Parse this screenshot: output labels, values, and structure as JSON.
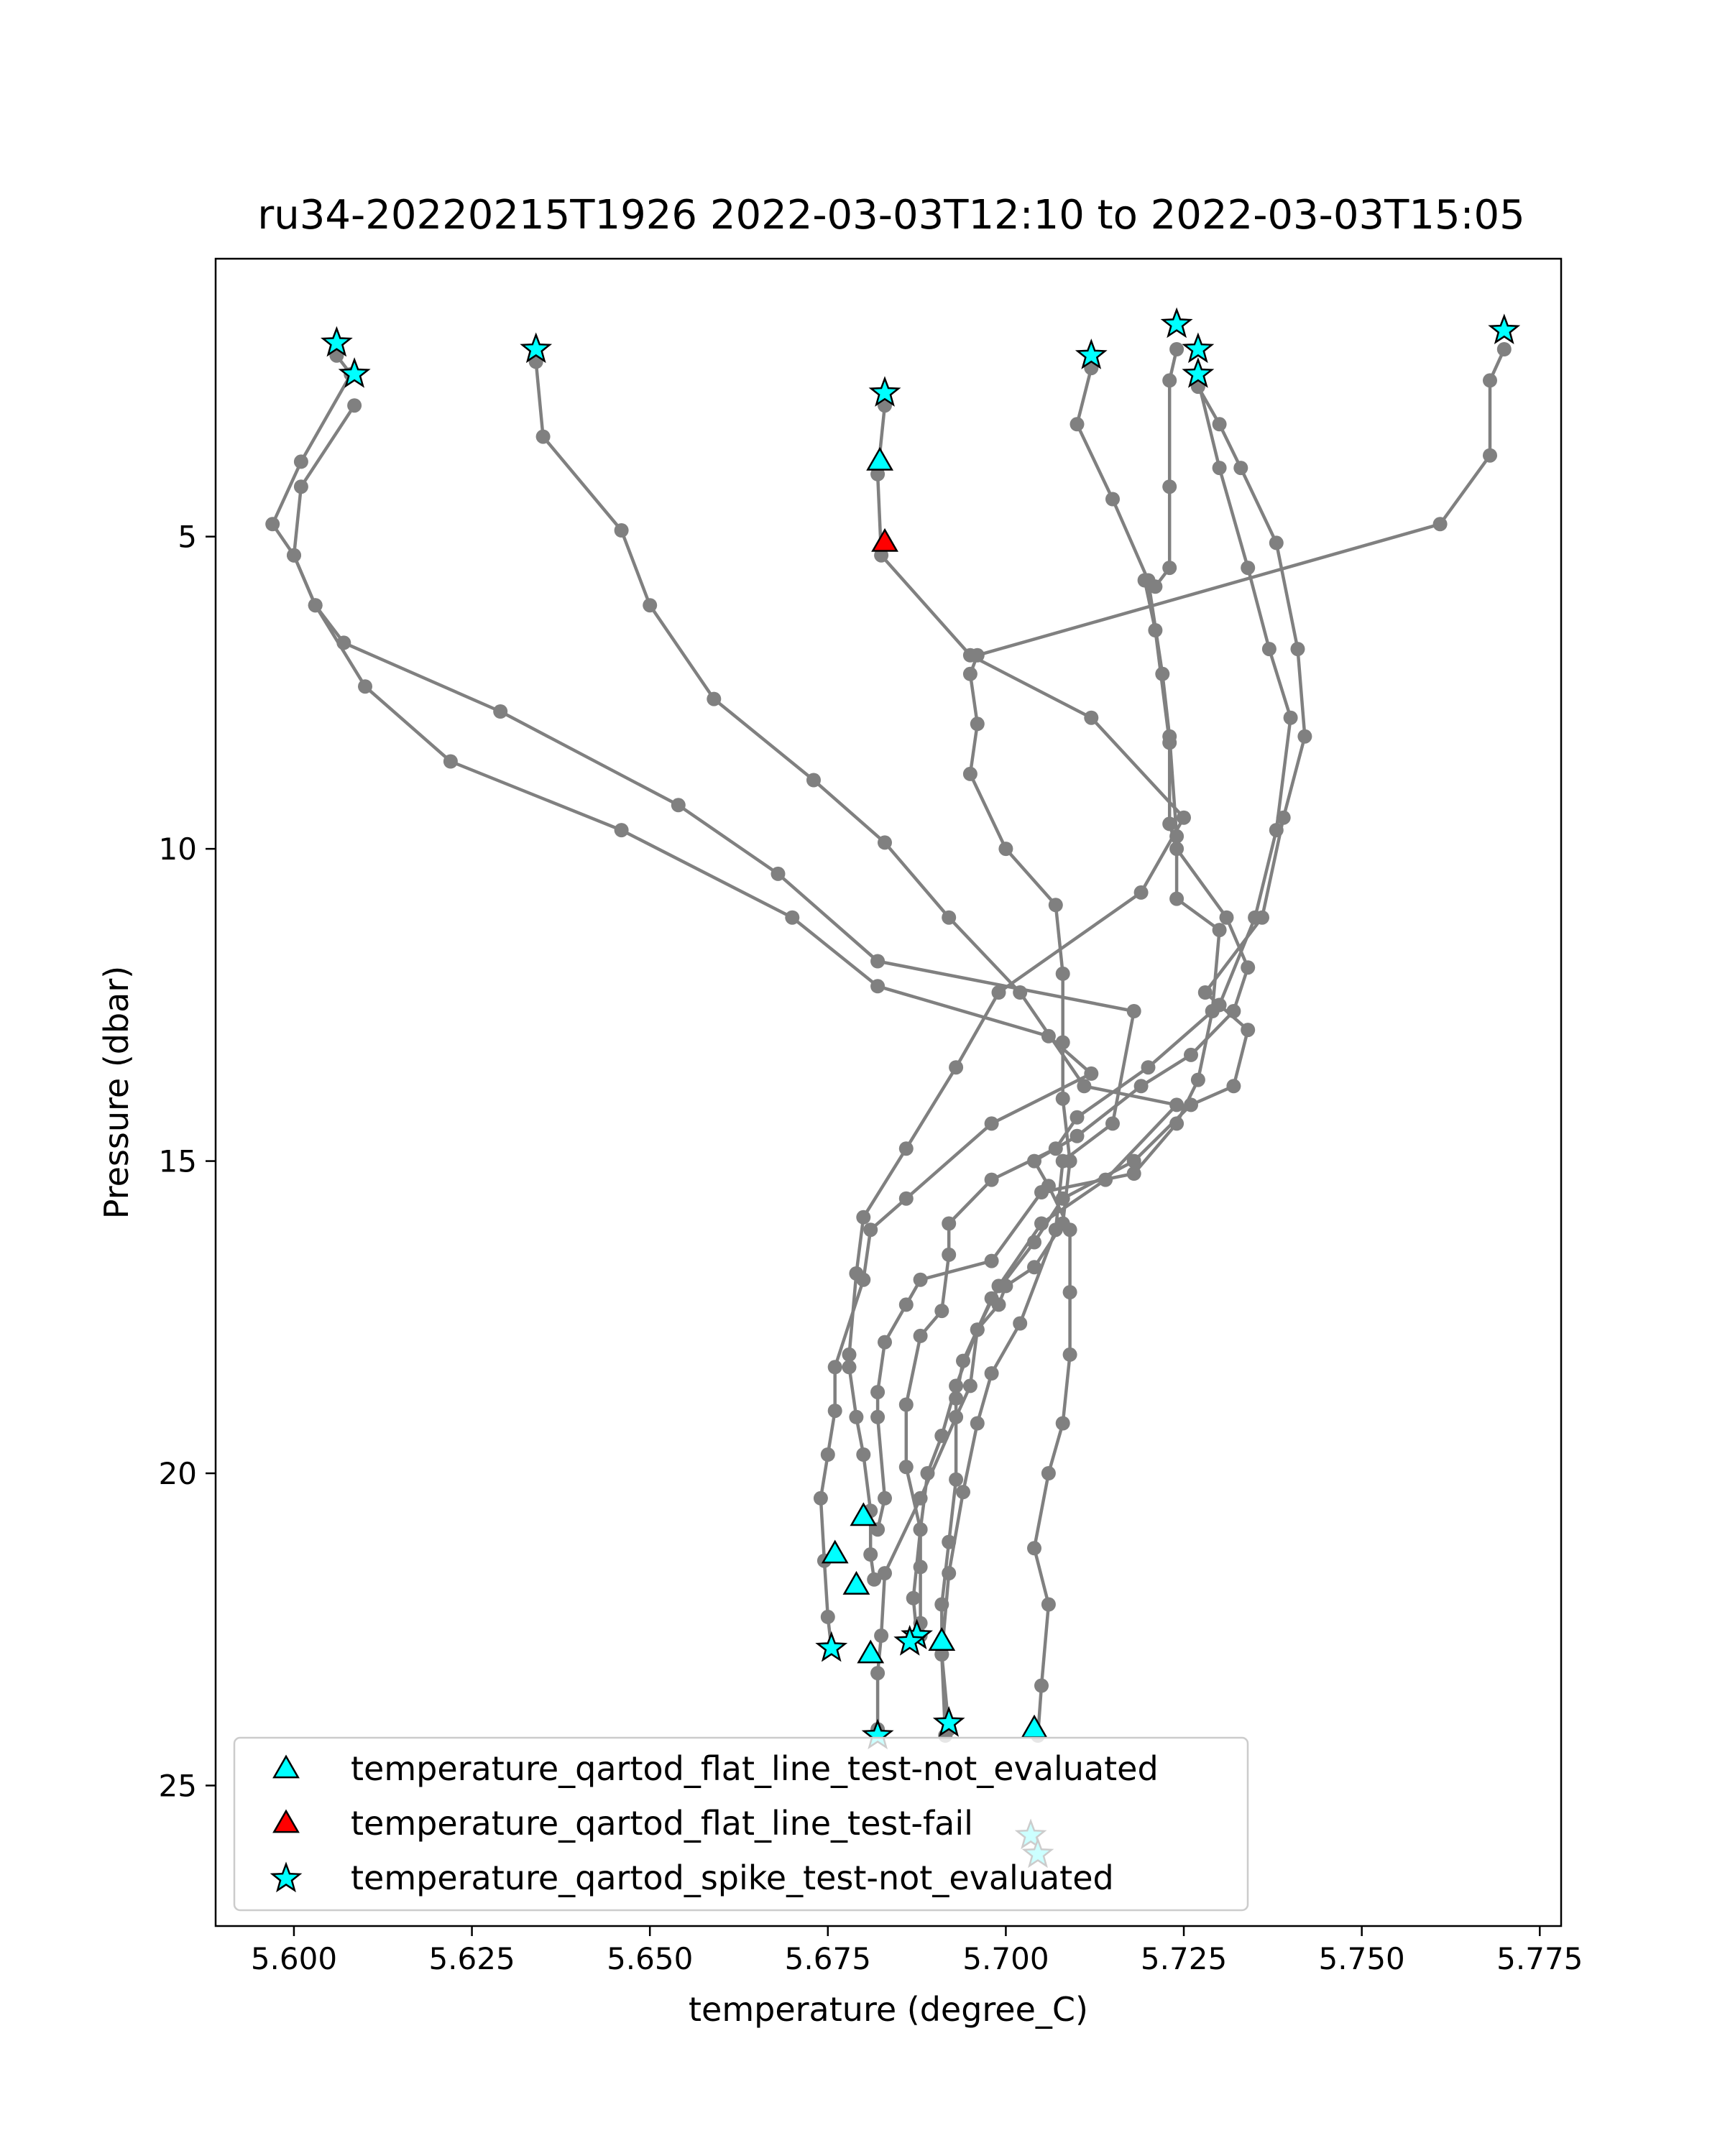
{
  "chart_data": {
    "type": "line",
    "title": "ru34-20220215T1926 2022-03-03T12:10 to 2022-03-03T15:05",
    "xlabel": "temperature (degree_C)",
    "ylabel": "Pressure (dbar)",
    "xlim": [
      5.589,
      5.778
    ],
    "ylim": [
      27.25,
      0.55
    ],
    "y_inverted": true,
    "xticks": [
      "5.600",
      "5.625",
      "5.650",
      "5.675",
      "5.700",
      "5.725",
      "5.750",
      "5.775"
    ],
    "yticks": [
      "5",
      "10",
      "15",
      "20",
      "25"
    ],
    "grid": false,
    "legend_position": "lower-left",
    "colors": {
      "line": "#808080",
      "not_evaluated": "#00ffff",
      "fail": "#ff0000",
      "edge": "#000000"
    },
    "legend": [
      {
        "label": "temperature_qartod_flat_line_test-not_evaluated",
        "marker": "triangle",
        "color": "#00ffff"
      },
      {
        "label": "temperature_qartod_flat_line_test-fail",
        "marker": "triangle",
        "color": "#ff0000"
      },
      {
        "label": "temperature_qartod_spike_test-not_evaluated",
        "marker": "star",
        "color": "#00ffff"
      }
    ],
    "series": [
      {
        "points": [
          [
            5.606,
            2.1
          ],
          [
            5.608,
            2.4
          ],
          [
            5.601,
            3.8
          ],
          [
            5.597,
            4.8
          ],
          [
            5.6,
            5.3
          ],
          [
            5.603,
            6.1
          ],
          [
            5.607,
            6.7
          ],
          [
            5.629,
            7.8
          ],
          [
            5.654,
            9.3
          ],
          [
            5.668,
            10.4
          ],
          [
            5.682,
            11.8
          ],
          [
            5.718,
            12.6
          ],
          [
            5.715,
            14.4
          ],
          [
            5.708,
            15.0
          ],
          [
            5.707,
            16.1
          ],
          [
            5.702,
            17.6
          ],
          [
            5.698,
            18.4
          ],
          [
            5.696,
            19.2
          ],
          [
            5.694,
            20.3
          ],
          [
            5.692,
            21.6
          ],
          [
            5.691,
            22.9
          ],
          [
            5.6915,
            24.2
          ]
        ]
      },
      {
        "points": [
          [
            5.6085,
            2.9
          ],
          [
            5.601,
            4.2
          ],
          [
            5.6,
            5.3
          ],
          [
            5.603,
            6.1
          ],
          [
            5.61,
            7.4
          ],
          [
            5.622,
            8.6
          ],
          [
            5.646,
            9.7
          ],
          [
            5.67,
            11.1
          ],
          [
            5.682,
            12.2
          ],
          [
            5.706,
            13.0
          ],
          [
            5.712,
            13.6
          ],
          [
            5.698,
            14.4
          ],
          [
            5.686,
            15.6
          ],
          [
            5.681,
            16.1
          ],
          [
            5.68,
            16.9
          ],
          [
            5.676,
            18.3
          ],
          [
            5.676,
            19.0
          ],
          [
            5.675,
            19.7
          ],
          [
            5.674,
            20.4
          ],
          [
            5.6745,
            21.4
          ],
          [
            5.675,
            22.3
          ],
          [
            5.6755,
            22.8
          ]
        ]
      },
      {
        "points": [
          [
            5.634,
            2.2
          ],
          [
            5.635,
            3.4
          ],
          [
            5.646,
            4.9
          ],
          [
            5.65,
            6.1
          ],
          [
            5.659,
            7.6
          ],
          [
            5.673,
            8.9
          ],
          [
            5.683,
            9.9
          ],
          [
            5.692,
            11.1
          ],
          [
            5.702,
            12.3
          ],
          [
            5.711,
            13.8
          ],
          [
            5.724,
            14.1
          ],
          [
            5.714,
            15.3
          ],
          [
            5.705,
            16.0
          ],
          [
            5.699,
            17.0
          ],
          [
            5.696,
            17.7
          ],
          [
            5.693,
            18.6
          ],
          [
            5.691,
            19.4
          ],
          [
            5.689,
            20.0
          ],
          [
            5.688,
            20.9
          ],
          [
            5.687,
            22.0
          ],
          [
            5.6875,
            22.6
          ]
        ]
      },
      {
        "points": [
          [
            5.683,
            2.9
          ],
          [
            5.682,
            4.0
          ],
          [
            5.6825,
            5.3
          ],
          [
            5.695,
            6.9
          ],
          [
            5.712,
            7.9
          ],
          [
            5.725,
            9.5
          ],
          [
            5.719,
            10.7
          ],
          [
            5.699,
            12.3
          ],
          [
            5.693,
            13.5
          ],
          [
            5.686,
            14.8
          ],
          [
            5.68,
            15.9
          ],
          [
            5.679,
            16.8
          ],
          [
            5.678,
            18.1
          ],
          [
            5.678,
            18.3
          ],
          [
            5.679,
            19.1
          ],
          [
            5.68,
            19.7
          ],
          [
            5.681,
            20.6
          ],
          [
            5.681,
            21.3
          ],
          [
            5.6815,
            21.7
          ]
        ]
      },
      {
        "points": [
          [
            5.712,
            2.3
          ],
          [
            5.71,
            3.2
          ],
          [
            5.715,
            4.4
          ],
          [
            5.72,
            5.7
          ],
          [
            5.722,
            7.2
          ],
          [
            5.723,
            8.2
          ],
          [
            5.724,
            9.8
          ],
          [
            5.724,
            10.8
          ],
          [
            5.73,
            11.3
          ],
          [
            5.729,
            12.6
          ],
          [
            5.727,
            13.7
          ],
          [
            5.724,
            14.4
          ],
          [
            5.718,
            15.2
          ],
          [
            5.705,
            15.5
          ],
          [
            5.698,
            16.6
          ],
          [
            5.688,
            16.9
          ],
          [
            5.686,
            17.3
          ],
          [
            5.683,
            17.9
          ],
          [
            5.682,
            18.7
          ],
          [
            5.682,
            19.1
          ],
          [
            5.683,
            20.4
          ],
          [
            5.682,
            20.9
          ]
        ]
      },
      {
        "points": [
          [
            5.724,
            2.0
          ],
          [
            5.723,
            2.5
          ],
          [
            5.723,
            4.2
          ],
          [
            5.723,
            5.5
          ],
          [
            5.721,
            5.8
          ],
          [
            5.7195,
            5.7
          ],
          [
            5.721,
            6.5
          ],
          [
            5.723,
            8.3
          ],
          [
            5.723,
            9.6
          ],
          [
            5.724,
            10.0
          ],
          [
            5.731,
            11.1
          ],
          [
            5.734,
            11.9
          ],
          [
            5.732,
            12.6
          ],
          [
            5.726,
            13.3
          ],
          [
            5.719,
            13.8
          ],
          [
            5.71,
            14.6
          ],
          [
            5.704,
            15.0
          ],
          [
            5.706,
            15.4
          ],
          [
            5.709,
            16.1
          ],
          [
            5.709,
            17.1
          ],
          [
            5.709,
            18.1
          ],
          [
            5.708,
            19.2
          ],
          [
            5.706,
            20.0
          ],
          [
            5.704,
            21.2
          ],
          [
            5.706,
            22.1
          ],
          [
            5.705,
            23.4
          ],
          [
            5.7045,
            24.2
          ]
        ]
      },
      {
        "points": [
          [
            5.727,
            2.5
          ],
          [
            5.73,
            3.9
          ],
          [
            5.734,
            5.5
          ],
          [
            5.737,
            6.8
          ],
          [
            5.74,
            7.9
          ],
          [
            5.738,
            9.7
          ],
          [
            5.735,
            11.1
          ],
          [
            5.73,
            12.5
          ],
          [
            5.72,
            13.5
          ],
          [
            5.71,
            14.3
          ],
          [
            5.707,
            14.8
          ],
          [
            5.698,
            15.3
          ],
          [
            5.692,
            16.0
          ],
          [
            5.692,
            16.5
          ],
          [
            5.691,
            17.4
          ],
          [
            5.688,
            17.8
          ],
          [
            5.686,
            18.9
          ],
          [
            5.686,
            19.9
          ],
          [
            5.688,
            20.9
          ],
          [
            5.688,
            21.5
          ],
          [
            5.688,
            22.4
          ],
          [
            5.688,
            22.6
          ]
        ]
      },
      {
        "points": [
          [
            5.727,
            2.6
          ],
          [
            5.73,
            3.2
          ],
          [
            5.733,
            3.9
          ],
          [
            5.738,
            5.1
          ],
          [
            5.741,
            6.8
          ],
          [
            5.742,
            8.2
          ],
          [
            5.739,
            9.5
          ],
          [
            5.736,
            11.1
          ],
          [
            5.728,
            12.3
          ],
          [
            5.734,
            12.9
          ],
          [
            5.732,
            13.8
          ],
          [
            5.726,
            14.1
          ],
          [
            5.718,
            15.0
          ],
          [
            5.708,
            15.6
          ],
          [
            5.704,
            16.3
          ],
          [
            5.698,
            17.2
          ],
          [
            5.694,
            18.2
          ],
          [
            5.693,
            18.8
          ],
          [
            5.693,
            20.1
          ],
          [
            5.692,
            21.1
          ],
          [
            5.691,
            22.1
          ],
          [
            5.691,
            22.9
          ],
          [
            5.692,
            24.1
          ]
        ]
      },
      {
        "points": [
          [
            5.77,
            2.0
          ],
          [
            5.768,
            2.5
          ],
          [
            5.768,
            3.7
          ],
          [
            5.761,
            4.8
          ],
          [
            5.696,
            6.9
          ],
          [
            5.695,
            7.2
          ],
          [
            5.696,
            8.0
          ],
          [
            5.695,
            8.8
          ],
          [
            5.7,
            10.0
          ],
          [
            5.707,
            10.9
          ],
          [
            5.708,
            12.0
          ],
          [
            5.708,
            13.1
          ],
          [
            5.708,
            14.0
          ],
          [
            5.709,
            15.0
          ],
          [
            5.708,
            16.0
          ],
          [
            5.704,
            16.7
          ],
          [
            5.7,
            17.0
          ],
          [
            5.699,
            17.3
          ],
          [
            5.696,
            17.7
          ],
          [
            5.695,
            18.6
          ],
          [
            5.693,
            19.1
          ],
          [
            5.688,
            20.4
          ],
          [
            5.683,
            21.6
          ],
          [
            5.6825,
            22.6
          ],
          [
            5.682,
            23.2
          ],
          [
            5.682,
            24.1
          ]
        ]
      }
    ],
    "markers": {
      "flat_line_not_evaluated": [
        [
          5.6823,
          3.8
        ],
        [
          5.68,
          20.7
        ],
        [
          5.676,
          21.3
        ],
        [
          5.679,
          21.8
        ],
        [
          5.681,
          22.9
        ],
        [
          5.691,
          22.7
        ],
        [
          5.704,
          24.1
        ]
      ],
      "flat_line_fail": [
        [
          5.683,
          5.1
        ]
      ],
      "spike_not_evaluated": [
        [
          5.606,
          1.9
        ],
        [
          5.634,
          2.0
        ],
        [
          5.6085,
          2.4
        ],
        [
          5.683,
          2.7
        ],
        [
          5.712,
          2.1
        ],
        [
          5.724,
          1.6
        ],
        [
          5.727,
          2.0
        ],
        [
          5.727,
          2.4
        ],
        [
          5.77,
          1.7
        ],
        [
          5.6755,
          22.8
        ],
        [
          5.6875,
          22.6
        ],
        [
          5.6865,
          22.7
        ],
        [
          5.682,
          24.2
        ],
        [
          5.692,
          24.0
        ],
        [
          5.7035,
          25.8
        ],
        [
          5.7045,
          26.1
        ]
      ]
    }
  }
}
